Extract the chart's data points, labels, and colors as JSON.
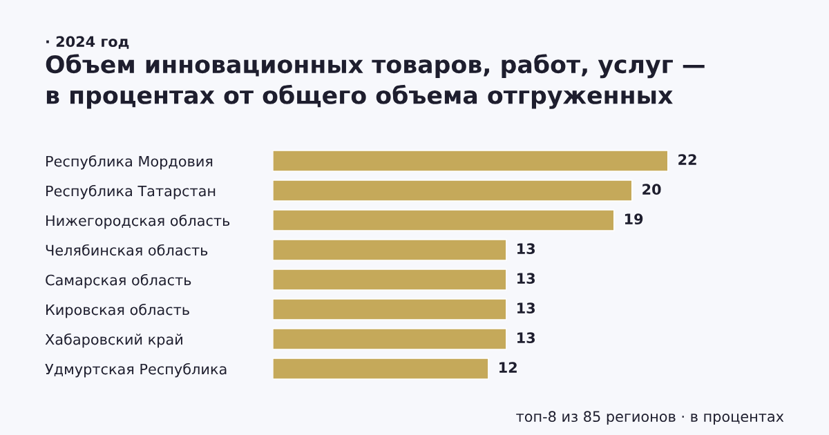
{
  "chart_data": {
    "type": "bar",
    "orientation": "horizontal",
    "subtitle": "· 2024 год",
    "title": "Объем инновационных товаров, работ, услуг —\nв процентах от общего объема отгруженных",
    "categories": [
      "Республика Мордовия",
      "Республика Татарстан",
      "Нижегородская область",
      "Челябинская область",
      "Самарская область",
      "Кировская область",
      "Хабаровский край",
      "Удмуртская Республика"
    ],
    "values": [
      22,
      20,
      19,
      13,
      13,
      13,
      13,
      12
    ],
    "color": "#c5a95a",
    "data_labels": true,
    "grid": false,
    "legend": false,
    "tick_labels": "y",
    "annotations": [
      "топ-8 из 85 регионов · в процентах"
    ]
  }
}
